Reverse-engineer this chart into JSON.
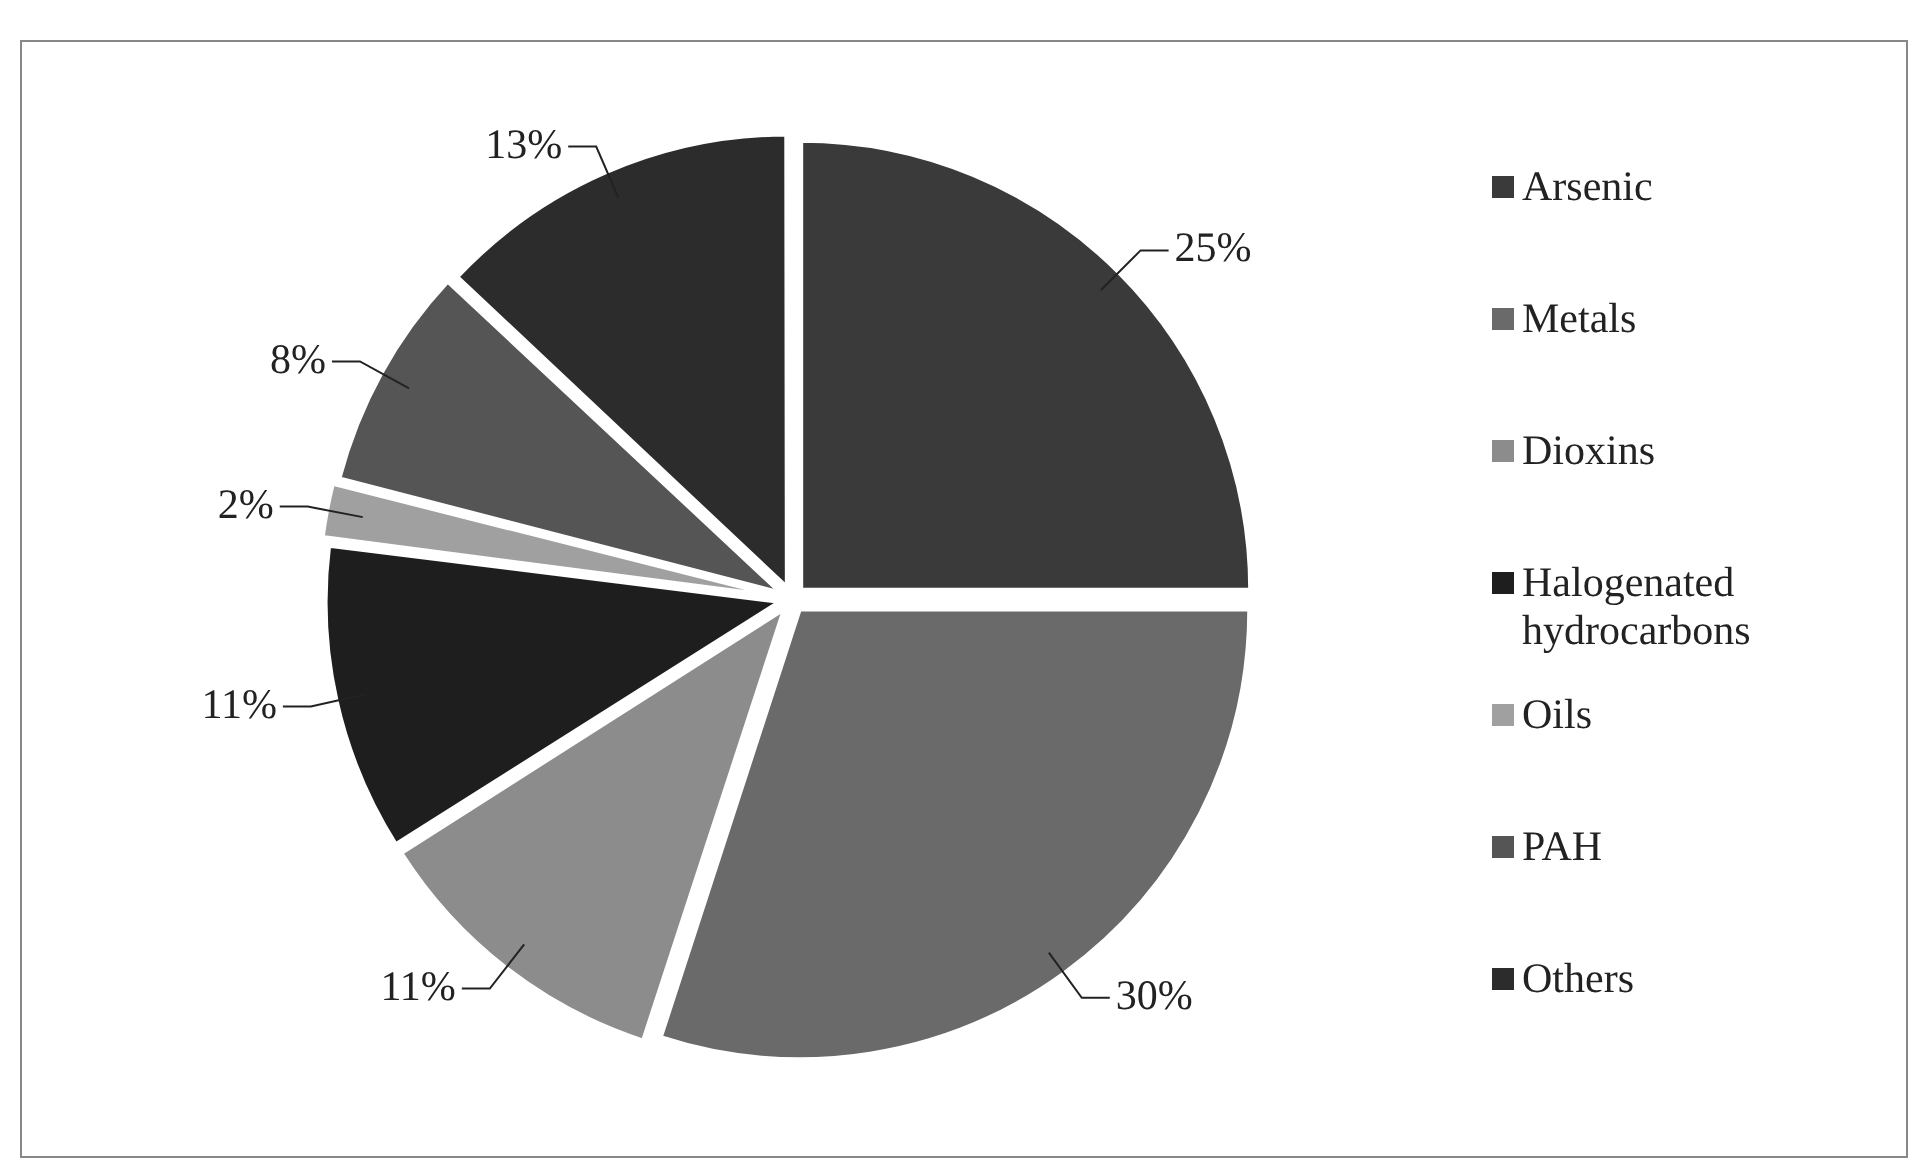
{
  "chart_data": {
    "type": "pie",
    "categories": [
      "Arsenic",
      "Metals",
      "Dioxins",
      "Halogenated hydrocarbons",
      "Oils",
      "PAH",
      "Others"
    ],
    "values": [
      25,
      30,
      11,
      11,
      2,
      8,
      13
    ],
    "colors": [
      "#3a3a3a",
      "#6a6a6a",
      "#8c8c8c",
      "#1e1e1e",
      "#a0a0a0",
      "#555555",
      "#2c2c2c"
    ],
    "value_labels": [
      "25%",
      "30%",
      "11%",
      "11%",
      "2%",
      "8%",
      "13%"
    ],
    "legend": "right"
  }
}
